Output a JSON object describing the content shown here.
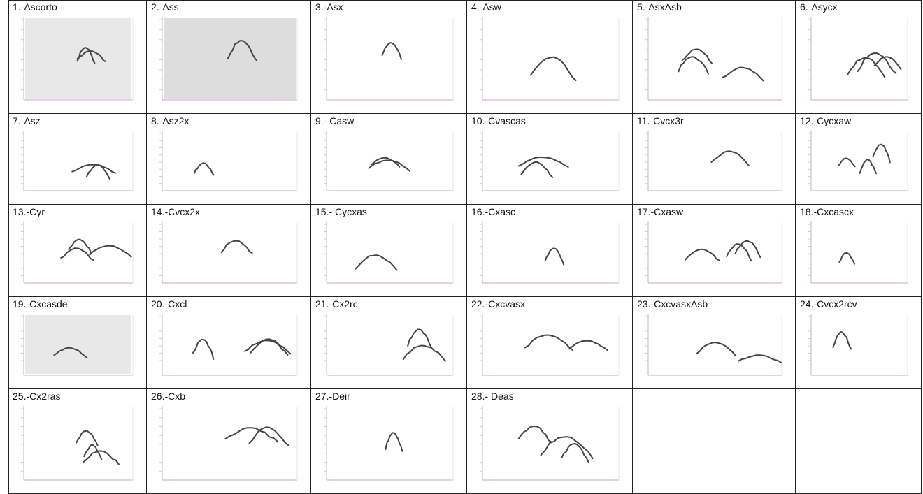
{
  "table": {
    "rows": [
      [
        "1.-Ascorto",
        "2.-Ass",
        "3.-Asx",
        "4.-Asw",
        "5.-AsxAsb",
        "6.-Asycx"
      ],
      [
        "7.-Asz",
        "8.-Asz2x",
        "9.- Casw",
        "10.-Cvascas",
        "11.-Cvcx3r",
        "12.-Cycxaw"
      ],
      [
        "13.-Cyr",
        "14.-Cvcx2x",
        "15.- Cycxas",
        "16.-Cxasc",
        "17.-Cxasw",
        "18.-Cxcascx"
      ],
      [
        "19.-Cxcasde",
        "20.-Cxcl",
        "21.-Cx2rc",
        "22.-Cxcvasx",
        "23.-CxcvasxAsb",
        "24.-Cvcx2rcv"
      ],
      [
        "25.-Cx2ras",
        "26.-Cxb",
        "27.-Deir",
        "28.- Deas"
      ]
    ]
  }
}
